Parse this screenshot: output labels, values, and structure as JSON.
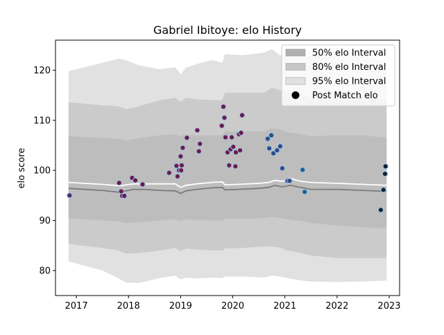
{
  "chart_data": {
    "type": "scatter",
    "title": "Gabriel Ibitoye: elo History",
    "xlabel": "",
    "ylabel": "elo score",
    "xlim": [
      2016.6,
      2023.2
    ],
    "ylim": [
      75,
      126
    ],
    "x_ticks": [
      2017,
      2018,
      2019,
      2020,
      2021,
      2022,
      2023
    ],
    "y_ticks": [
      80,
      90,
      100,
      110,
      120
    ],
    "grid": false,
    "legend_position": "top-right",
    "legend": [
      {
        "label": "50% elo Interval",
        "kind": "band",
        "color": "#b0b0b0"
      },
      {
        "label": "80% elo Interval",
        "kind": "band",
        "color": "#c6c6c6"
      },
      {
        "label": "95% elo Interval",
        "kind": "band",
        "color": "#e1e1e1"
      },
      {
        "label": "Post Match elo",
        "kind": "marker",
        "color": "#000000"
      }
    ],
    "bands": {
      "x": [
        2016.85,
        2017.5,
        2017.8,
        2017.95,
        2018.2,
        2018.6,
        2018.9,
        2019.0,
        2019.1,
        2019.3,
        2019.6,
        2019.8,
        2019.85,
        2020.2,
        2020.6,
        2020.75,
        2020.9,
        2021.05,
        2021.3,
        2021.5,
        2022.0,
        2022.5,
        2022.95
      ],
      "p95_upper": [
        119.8,
        121.5,
        122.3,
        122.0,
        121.0,
        120.2,
        120.6,
        119.2,
        120.5,
        121.2,
        122.0,
        121.5,
        123.2,
        123.0,
        123.5,
        124.2,
        123.0,
        123.0,
        122.7,
        122.8,
        124.6,
        123.0,
        121.5
      ],
      "p80_upper": [
        113.6,
        113.0,
        112.8,
        112.2,
        112.8,
        114.0,
        114.5,
        113.6,
        114.5,
        114.2,
        114.0,
        114.0,
        115.5,
        115.5,
        115.5,
        116.5,
        116.0,
        115.7,
        115.2,
        114.5,
        115.5,
        115.0,
        114.0
      ],
      "p50_upper": [
        106.8,
        106.5,
        106.3,
        106.0,
        106.4,
        107.0,
        107.2,
        106.8,
        107.2,
        107.0,
        107.0,
        107.0,
        107.8,
        107.8,
        107.8,
        108.4,
        108.2,
        107.6,
        107.2,
        106.8,
        107.0,
        107.0,
        106.5
      ],
      "p50_lower": [
        90.5,
        90.0,
        89.8,
        89.5,
        89.6,
        90.0,
        90.2,
        89.9,
        90.2,
        90.1,
        90.0,
        90.0,
        90.4,
        90.3,
        90.5,
        90.7,
        90.5,
        90.2,
        89.9,
        89.5,
        89.0,
        88.6,
        88.4
      ],
      "p80_lower": [
        85.3,
        84.5,
        84.0,
        83.4,
        83.5,
        84.0,
        84.5,
        83.8,
        84.4,
        84.2,
        84.0,
        84.0,
        84.4,
        84.5,
        84.8,
        84.8,
        84.6,
        84.0,
        83.5,
        83.0,
        82.5,
        82.5,
        82.5
      ],
      "p95_lower": [
        81.8,
        80.0,
        78.5,
        77.6,
        77.5,
        78.5,
        79.0,
        78.2,
        78.6,
        78.4,
        78.6,
        78.5,
        78.8,
        78.8,
        78.6,
        79.0,
        78.8,
        78.5,
        78.0,
        77.8,
        77.7,
        77.8,
        78.0
      ]
    },
    "series": [
      {
        "kind": "line",
        "x": [
          2016.85,
          2017.5,
          2017.85,
          2017.95,
          2018.1,
          2018.3,
          2018.6,
          2018.9,
          2019.0,
          2019.1,
          2019.3,
          2019.6,
          2019.8,
          2019.85,
          2020.1,
          2020.5,
          2020.7,
          2020.8,
          2020.95,
          2021.1,
          2021.3,
          2021.5,
          2022.0,
          2022.5,
          2022.95
        ],
        "values": [
          96.4,
          96.0,
          95.6,
          95.9,
          96.2,
          96.2,
          96.0,
          95.9,
          95.4,
          95.9,
          96.2,
          96.5,
          96.6,
          96.1,
          96.2,
          96.4,
          96.6,
          97.0,
          96.7,
          97.0,
          96.6,
          96.2,
          96.2,
          96.0,
          95.8
        ],
        "color": "#7a7a7a"
      },
      {
        "kind": "line",
        "x": [
          2016.85,
          2017.5,
          2017.85,
          2017.95,
          2018.1,
          2018.3,
          2018.6,
          2018.9,
          2019.0,
          2019.1,
          2019.3,
          2019.6,
          2019.8,
          2019.85,
          2020.1,
          2020.5,
          2020.7,
          2020.8,
          2020.95,
          2021.1,
          2021.3,
          2021.5,
          2022.0,
          2022.5,
          2022.95
        ],
        "values": [
          97.6,
          97.2,
          96.9,
          97.1,
          97.3,
          97.3,
          97.3,
          97.3,
          96.6,
          97.0,
          97.3,
          97.6,
          97.7,
          97.1,
          97.2,
          97.4,
          97.6,
          98.0,
          97.8,
          98.4,
          97.8,
          97.6,
          97.4,
          97.2,
          97.0
        ],
        "color": "#ffffff"
      },
      {
        "kind": "scatter",
        "name": "Post Match elo",
        "x": [
          2016.87,
          2017.82,
          2017.86,
          2017.88,
          2017.92,
          2018.07,
          2018.13,
          2018.27,
          2018.78,
          2018.92,
          2018.94,
          2018.97,
          2019.0,
          2019.01,
          2019.02,
          2019.04,
          2019.12,
          2019.32,
          2019.35,
          2019.37,
          2019.79,
          2019.82,
          2019.84,
          2019.86,
          2019.9,
          2019.93,
          2019.96,
          2019.98,
          2020.01,
          2020.05,
          2020.06,
          2020.12,
          2020.14,
          2020.16,
          2020.18,
          2020.67,
          2020.7,
          2020.74,
          2020.78,
          2020.85,
          2020.91,
          2020.95,
          2021.05,
          2021.09,
          2021.34,
          2021.38,
          2022.84,
          2022.89,
          2022.92,
          2022.93
        ],
        "values": [
          95.0,
          97.5,
          95.8,
          94.9,
          94.9,
          98.5,
          98.0,
          97.2,
          99.5,
          100.9,
          98.8,
          100.0,
          102.8,
          100.0,
          101.0,
          104.5,
          106.5,
          108.0,
          103.8,
          105.3,
          108.9,
          112.7,
          110.5,
          106.6,
          103.6,
          101.0,
          104.2,
          106.6,
          104.7,
          100.8,
          103.6,
          107.2,
          104.0,
          107.5,
          111.0,
          106.3,
          104.4,
          107.0,
          103.4,
          104.0,
          104.8,
          100.4,
          97.9,
          97.9,
          100.1,
          95.7,
          92.1,
          96.1,
          99.3,
          100.8
        ],
        "colors": [
          "#4b2a6b",
          "#6a1b4d",
          "#6a1b4d",
          "#6a1b4d",
          "#6a1b4d",
          "#6a1b4d",
          "#6a1b4d",
          "#6a1b4d",
          "#6a1b4d",
          "#6a1b4d",
          "#6a1b4d",
          "#6a1b4d",
          "#6a1b4d",
          "#6a1b4d",
          "#6a1b4d",
          "#6a1b4d",
          "#6a1b4d",
          "#6a1b4d",
          "#6a1b4d",
          "#6a1b4d",
          "#6a1b4d",
          "#6a1b4d",
          "#6a1b4d",
          "#6a1b4d",
          "#6a1b4d",
          "#6a1b4d",
          "#6a1b4d",
          "#6a1b4d",
          "#6a1b4d",
          "#6a1b4d",
          "#6a1b4d",
          "#6a1b4d",
          "#6a1b4d",
          "#6a1b4d",
          "#6a1b4d",
          "#2f4a85",
          "#2f4a85",
          "#2f4a85",
          "#2f4a85",
          "#2f4a85",
          "#2f4a85",
          "#2f4a85",
          "#2f4a85",
          "#2f4a85",
          "#1f5f8b",
          "#1f5f8b",
          "#0f2233",
          "#0f2233",
          "#0f2233",
          "#0f2233"
        ]
      }
    ]
  }
}
